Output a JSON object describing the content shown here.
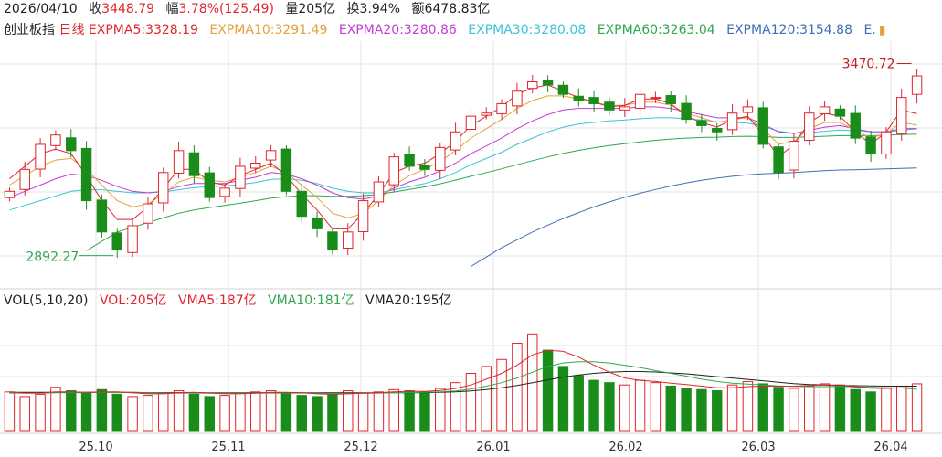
{
  "header": {
    "date": "2026/04/10",
    "close_label": "收",
    "close_value": "3448.79",
    "amp_label": "幅",
    "amp_value": "3.78%(125.49)",
    "vol_label": "量",
    "vol_value": "205亿",
    "turnover_label": "换",
    "turnover_value": "3.94%",
    "amount_label": "额",
    "amount_value": "6478.83亿"
  },
  "legend": {
    "index_name": "创业板指",
    "period": "日线",
    "items": [
      {
        "label": "EXPMA5:3328.19",
        "color": "#e0252b"
      },
      {
        "label": "EXPMA10:3291.49",
        "color": "#e6a13a"
      },
      {
        "label": "EXPMA20:3280.86",
        "color": "#c43ad6"
      },
      {
        "label": "EXPMA30:3280.08",
        "color": "#3cc3d9"
      },
      {
        "label": "EXPMA60:3263.04",
        "color": "#2fa84f"
      },
      {
        "label": "EXPMA120:3154.88",
        "color": "#3f6fb5"
      }
    ],
    "overflow": "E."
  },
  "volume_legend": {
    "title": "VOL(5,10,20)",
    "vol": "VOL:205亿",
    "vma5": "VMA5:187亿",
    "vma10": "VMA10:181亿",
    "vma20": "VMA20:195亿"
  },
  "colors": {
    "up": "#e0252b",
    "down": "#1a8c1a",
    "grid": "#e3e3e3",
    "annotation": "#c81d25"
  },
  "chart_data": {
    "type": "candlestick",
    "title": "",
    "xlabel": "",
    "ylabel": "",
    "grid": true,
    "legend_position": "top-left",
    "x_ticks": [
      "25.10",
      "25.11",
      "25.12",
      "26.01",
      "26.02",
      "26.03",
      "26.04"
    ],
    "price_range": [
      2780,
      3560
    ],
    "volume_range": [
      0,
      500
    ],
    "annotations": [
      {
        "label": "2892.27",
        "kind": "low"
      },
      {
        "label": "3470.72",
        "kind": "high"
      }
    ],
    "price_points": [
      3080,
      3150,
      3230,
      3260,
      3210,
      3050,
      2950,
      2892.27,
      2970,
      3040,
      3140,
      3210,
      3130,
      3060,
      3090,
      3160,
      3170,
      3210,
      3080,
      3000,
      2960,
      2892.27,
      2950,
      3050,
      3110,
      3190,
      3160,
      3150,
      3220,
      3270,
      3320,
      3330,
      3360,
      3400,
      3430,
      3420,
      3390,
      3370,
      3360,
      3340,
      3350,
      3390,
      3380,
      3360,
      3310,
      3290,
      3270,
      3330,
      3350,
      3230,
      3140,
      3240,
      3330,
      3350,
      3320,
      3250,
      3200,
      3270,
      3380,
      3448.79
    ],
    "ma5_points": [
      3120,
      3160,
      3200,
      3215,
      3200,
      3130,
      3050,
      2990,
      2990,
      3030,
      3090,
      3150,
      3150,
      3110,
      3100,
      3130,
      3150,
      3170,
      3130,
      3070,
      3020,
      2960,
      2960,
      3010,
      3070,
      3140,
      3160,
      3170,
      3200,
      3240,
      3290,
      3320,
      3350,
      3390,
      3410,
      3420,
      3400,
      3380,
      3365,
      3350,
      3355,
      3375,
      3375,
      3360,
      3320,
      3300,
      3285,
      3310,
      3320,
      3260,
      3190,
      3230,
      3300,
      3330,
      3320,
      3270,
      3230,
      3270,
      3340,
      3328.19
    ],
    "ma10_points": [
      3100,
      3130,
      3160,
      3180,
      3185,
      3150,
      3100,
      3050,
      3030,
      3040,
      3070,
      3110,
      3125,
      3115,
      3110,
      3125,
      3140,
      3160,
      3140,
      3100,
      3060,
      3010,
      2995,
      3010,
      3050,
      3100,
      3130,
      3150,
      3175,
      3210,
      3250,
      3280,
      3310,
      3345,
      3370,
      3385,
      3385,
      3375,
      3365,
      3355,
      3355,
      3365,
      3365,
      3355,
      3330,
      3315,
      3300,
      3310,
      3315,
      3280,
      3230,
      3240,
      3280,
      3300,
      3300,
      3275,
      3250,
      3265,
      3300,
      3291.49
    ],
    "ma20_points": [
      3060,
      3080,
      3100,
      3120,
      3135,
      3130,
      3115,
      3095,
      3080,
      3075,
      3080,
      3095,
      3105,
      3105,
      3105,
      3115,
      3125,
      3140,
      3135,
      3120,
      3100,
      3075,
      3060,
      3055,
      3065,
      3090,
      3110,
      3125,
      3145,
      3170,
      3200,
      3225,
      3250,
      3280,
      3305,
      3325,
      3340,
      3345,
      3345,
      3345,
      3345,
      3350,
      3350,
      3345,
      3335,
      3325,
      3315,
      3315,
      3315,
      3295,
      3270,
      3265,
      3275,
      3285,
      3290,
      3280,
      3270,
      3270,
      3280,
      3280.86
    ],
    "ma30_points": [
      3020,
      3035,
      3050,
      3065,
      3080,
      3085,
      3085,
      3080,
      3075,
      3075,
      3078,
      3085,
      3092,
      3095,
      3097,
      3102,
      3108,
      3118,
      3120,
      3115,
      3105,
      3090,
      3080,
      3075,
      3075,
      3085,
      3095,
      3105,
      3120,
      3140,
      3165,
      3185,
      3205,
      3230,
      3250,
      3270,
      3285,
      3295,
      3300,
      3305,
      3308,
      3312,
      3315,
      3315,
      3312,
      3308,
      3302,
      3300,
      3298,
      3288,
      3272,
      3266,
      3268,
      3272,
      3276,
      3274,
      3270,
      3270,
      3275,
      3280.08
    ],
    "ma60_points": [
      null,
      null,
      null,
      null,
      null,
      2890,
      2920,
      2950,
      2965,
      2980,
      2995,
      3010,
      3020,
      3028,
      3035,
      3042,
      3050,
      3058,
      3063,
      3066,
      3066,
      3064,
      3064,
      3066,
      3070,
      3078,
      3086,
      3094,
      3104,
      3116,
      3128,
      3140,
      3152,
      3165,
      3178,
      3190,
      3201,
      3211,
      3219,
      3226,
      3232,
      3238,
      3243,
      3247,
      3250,
      3252,
      3253,
      3255,
      3256,
      3255,
      3252,
      3252,
      3254,
      3256,
      3258,
      3258,
      3258,
      3259,
      3261,
      3263.04
    ],
    "ma120_points": [
      null,
      null,
      null,
      null,
      null,
      null,
      null,
      null,
      null,
      null,
      null,
      null,
      null,
      null,
      null,
      null,
      null,
      null,
      null,
      null,
      null,
      null,
      null,
      null,
      null,
      null,
      null,
      null,
      null,
      null,
      2840,
      2870,
      2900,
      2925,
      2950,
      2972,
      2993,
      3012,
      3030,
      3046,
      3061,
      3074,
      3086,
      3097,
      3107,
      3115,
      3122,
      3128,
      3133,
      3136,
      3138,
      3140,
      3143,
      3146,
      3148,
      3149,
      3150,
      3152,
      3153,
      3154.88
    ],
    "volume": [
      170,
      150,
      160,
      190,
      175,
      165,
      180,
      160,
      150,
      155,
      165,
      175,
      160,
      150,
      155,
      165,
      170,
      175,
      165,
      155,
      150,
      160,
      175,
      165,
      170,
      180,
      175,
      170,
      185,
      210,
      250,
      280,
      310,
      380,
      420,
      350,
      280,
      240,
      220,
      210,
      200,
      220,
      210,
      195,
      185,
      180,
      175,
      200,
      215,
      205,
      190,
      185,
      195,
      205,
      200,
      180,
      170,
      185,
      195,
      205
    ],
    "vma5": [
      170,
      165,
      165,
      170,
      170,
      168,
      170,
      170,
      166,
      162,
      162,
      166,
      168,
      165,
      162,
      162,
      165,
      168,
      168,
      166,
      162,
      160,
      162,
      164,
      166,
      170,
      173,
      172,
      176,
      185,
      200,
      225,
      250,
      285,
      330,
      350,
      345,
      320,
      285,
      255,
      230,
      220,
      215,
      208,
      202,
      195,
      188,
      188,
      193,
      195,
      195,
      195,
      198,
      200,
      200,
      192,
      186,
      185,
      188,
      187
    ],
    "vma10": [
      165,
      165,
      165,
      166,
      167,
      167,
      168,
      168,
      167,
      166,
      165,
      165,
      165,
      165,
      164,
      164,
      164,
      165,
      165,
      165,
      164,
      163,
      163,
      164,
      165,
      166,
      167,
      168,
      170,
      174,
      182,
      195,
      210,
      230,
      255,
      280,
      295,
      300,
      300,
      295,
      285,
      275,
      262,
      250,
      238,
      225,
      215,
      208,
      204,
      200,
      196,
      194,
      193,
      193,
      194,
      192,
      190,
      188,
      187,
      181
    ],
    "vma20": [
      168,
      168,
      168,
      168,
      168,
      168,
      168,
      168,
      168,
      167,
      167,
      167,
      167,
      166,
      166,
      166,
      166,
      166,
      166,
      166,
      166,
      166,
      166,
      166,
      166,
      166,
      166,
      167,
      168,
      170,
      174,
      180,
      188,
      198,
      210,
      222,
      234,
      243,
      250,
      255,
      258,
      258,
      256,
      252,
      248,
      242,
      236,
      230,
      224,
      218,
      212,
      206,
      202,
      200,
      198,
      197,
      196,
      195,
      195,
      195
    ]
  }
}
